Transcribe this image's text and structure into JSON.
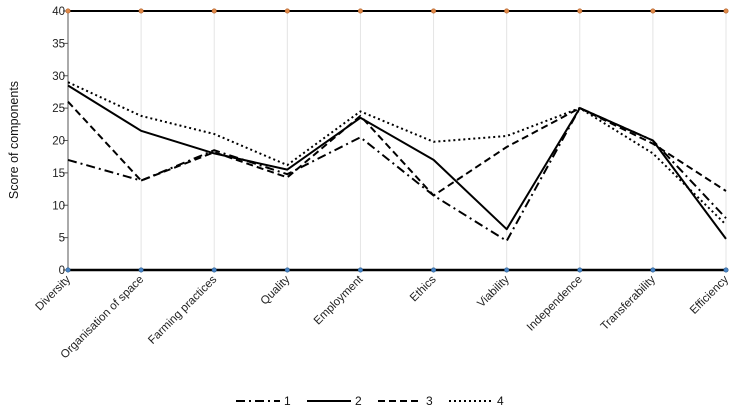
{
  "chart_data": {
    "type": "line",
    "categories": [
      "Diversity",
      "Organisation of space",
      "Farming practices",
      "Quality",
      "Employment",
      "Ethics",
      "Viability",
      "Independence",
      "Transferability",
      "Efficiency"
    ],
    "ylabel": "Score of components",
    "ylim": [
      0,
      40
    ],
    "yticks": [
      0,
      5,
      10,
      15,
      20,
      25,
      30,
      35,
      40
    ],
    "grid": "vertical",
    "legend_position": "bottom-center",
    "series": [
      {
        "name": "1",
        "dash": "dash-dot",
        "values": [
          17,
          13.8,
          18.5,
          14.8,
          20.5,
          11.5,
          4.5,
          25,
          20,
          8
        ]
      },
      {
        "name": "2",
        "dash": "solid",
        "values": [
          28.5,
          21.5,
          18,
          15.5,
          23.5,
          17,
          6.3,
          25,
          20,
          4.8
        ]
      },
      {
        "name": "3",
        "dash": "dashed",
        "values": [
          26,
          13.8,
          18.2,
          14.3,
          23.8,
          11.5,
          19,
          25,
          19.5,
          12.2
        ]
      },
      {
        "name": "4",
        "dash": "dotted",
        "values": [
          29,
          23.8,
          21,
          16.2,
          24.5,
          19.8,
          20.7,
          25,
          18,
          7
        ]
      }
    ]
  }
}
